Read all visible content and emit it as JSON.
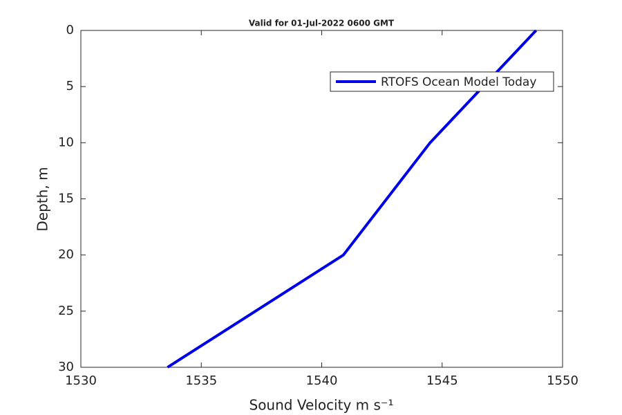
{
  "chart_data": {
    "type": "line",
    "title": "Valid for 01-Jul-2022 0600 GMT",
    "x_label": "Sound Velocity m s⁻¹",
    "y_label": "Depth, m",
    "x": [
      1548.9,
      1544.5,
      1540.9,
      1533.6
    ],
    "series": [
      {
        "name": "RTOFS Ocean Model Today",
        "color": "#0000e6",
        "values": [
          0,
          10,
          20,
          30
        ]
      }
    ],
    "xlim": [
      1530,
      1550
    ],
    "xticks": [
      1530,
      1535,
      1540,
      1545,
      1550
    ],
    "ylim": [
      0,
      30
    ],
    "yticks": [
      0,
      5,
      10,
      15,
      20,
      25,
      30
    ],
    "y_reversed": true,
    "grid": false,
    "legend": "northeast"
  }
}
